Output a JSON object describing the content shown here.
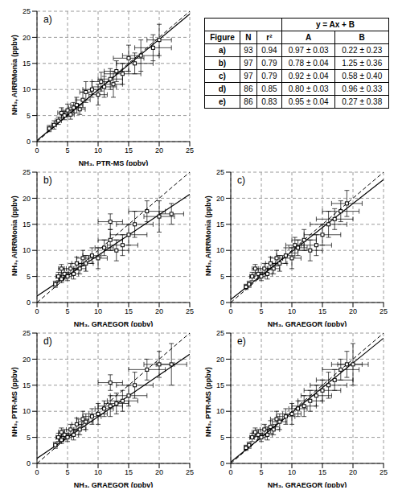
{
  "chart_data": [
    {
      "type": "scatter",
      "title": "a)",
      "x_label": "NH₃, PTR-MS (ppbv)",
      "y_label": "NH₃, AIRRMonia (ppbv)",
      "xlim": [
        0,
        25
      ],
      "ylim": [
        0,
        25
      ],
      "xticks": [
        0,
        5,
        10,
        15,
        20,
        25
      ],
      "yticks": [
        0,
        5,
        10,
        15,
        20,
        25
      ],
      "grid": true,
      "marker": "square",
      "color": "#000000",
      "fit": {
        "A": 0.97,
        "B": 0.22
      },
      "x": [
        2,
        2.8,
        3.5,
        4,
        4.5,
        5,
        5.5,
        6,
        6.5,
        7,
        7.5,
        8,
        9,
        10,
        10.5,
        11,
        12,
        12.5,
        13,
        14,
        15,
        16,
        17,
        19,
        20
      ],
      "values": [
        2.5,
        3.2,
        4,
        5.5,
        5,
        6,
        5.2,
        6.5,
        7,
        6.2,
        8,
        9.5,
        10,
        9,
        11.5,
        10.5,
        12,
        11,
        13.5,
        13,
        16,
        15,
        16.5,
        18,
        19.5
      ],
      "x_err": [
        0.3,
        0.4,
        0.5,
        0.6,
        0.5,
        0.8,
        0.6,
        0.8,
        1,
        0.9,
        1.2,
        1,
        1.5,
        1.5,
        1.5,
        2,
        2,
        1.5,
        2,
        3,
        2.5,
        3,
        3,
        3,
        2
      ],
      "y_err": [
        0.6,
        0.8,
        0.7,
        1,
        0.8,
        1.2,
        0.9,
        1,
        1.5,
        1,
        1.5,
        2,
        1.5,
        2,
        1.8,
        2,
        2,
        2.5,
        2,
        2,
        2.5,
        2,
        3,
        2.5,
        3
      ]
    },
    {
      "type": "scatter",
      "title": "b)",
      "x_label": "NH₃, GRAEGOR (ppbv)",
      "y_label": "NH₃, AIRRMonia (ppbv)",
      "xlim": [
        0,
        25
      ],
      "ylim": [
        0,
        25
      ],
      "xticks": [
        0,
        5,
        10,
        15,
        20,
        25
      ],
      "yticks": [
        0,
        5,
        10,
        15,
        20,
        25
      ],
      "grid": true,
      "marker": "square",
      "color": "#000000",
      "fit": {
        "A": 0.78,
        "B": 1.25
      },
      "x": [
        3,
        3.5,
        4,
        4,
        4.5,
        5,
        5.5,
        6,
        6.5,
        7,
        7.5,
        8,
        9,
        10,
        11,
        12,
        12,
        13,
        14,
        15,
        16,
        18,
        20,
        22
      ],
      "values": [
        3.5,
        5,
        4.5,
        6.5,
        5.5,
        5,
        6.5,
        5.5,
        7.5,
        6.5,
        8.5,
        7.5,
        9,
        8.5,
        10.5,
        12,
        15.5,
        10,
        11,
        13,
        15,
        17.5,
        16.5,
        17
      ],
      "x_err": [
        0.3,
        0.4,
        0.4,
        0.5,
        0.5,
        0.6,
        0.7,
        0.8,
        0.8,
        1,
        1,
        1.2,
        1.5,
        1.5,
        1.5,
        2,
        2,
        2,
        2.5,
        3,
        3,
        3,
        2.5,
        2
      ],
      "y_err": [
        0.6,
        0.8,
        0.7,
        0.8,
        1,
        0.8,
        1,
        1,
        1.2,
        1,
        1.5,
        1.5,
        1.5,
        2,
        1.5,
        2,
        1.5,
        2,
        2,
        2,
        2.5,
        2,
        3,
        2
      ]
    },
    {
      "type": "scatter",
      "title": "c)",
      "x_label": "NH₃, GRAEGOR (ppbv)",
      "y_label": "NH₃, AIRRMonia (ppbv)",
      "xlim": [
        0,
        25
      ],
      "ylim": [
        0,
        25
      ],
      "xticks": [
        0,
        5,
        10,
        15,
        20,
        25
      ],
      "yticks": [
        0,
        5,
        10,
        15,
        20,
        25
      ],
      "grid": true,
      "marker": "square",
      "color": "#000000",
      "fit": {
        "A": 0.92,
        "B": 0.58
      },
      "x": [
        2.5,
        3,
        3.5,
        4,
        4.5,
        5,
        5.5,
        6,
        6.5,
        7,
        7.5,
        8,
        9,
        10,
        10.5,
        11,
        12,
        13,
        14,
        15,
        16,
        17,
        18,
        19
      ],
      "values": [
        3,
        3.5,
        5,
        6.5,
        5.5,
        5,
        6.5,
        5.5,
        7.5,
        6.5,
        8.5,
        7.5,
        9,
        8.5,
        11,
        10.5,
        12,
        10,
        11,
        13,
        15,
        16,
        17.5,
        19
      ],
      "x_err": [
        0.3,
        0.3,
        0.4,
        0.5,
        0.5,
        0.6,
        0.7,
        0.8,
        0.8,
        1,
        1,
        1.2,
        1.5,
        1.5,
        1.5,
        1.5,
        2,
        2,
        2.5,
        3,
        3,
        3,
        3,
        2.5
      ],
      "y_err": [
        0.5,
        0.6,
        0.8,
        0.8,
        1,
        0.8,
        1,
        1,
        1.2,
        1,
        1.5,
        1.5,
        1.5,
        2,
        1.5,
        1.5,
        2,
        2,
        2,
        2,
        2.5,
        2,
        2,
        2.5
      ]
    },
    {
      "type": "scatter",
      "title": "d)",
      "x_label": "NH₃, GRAEGOR (ppbv)",
      "y_label": "NH₃, PTR-MS (ppbv)",
      "xlim": [
        0,
        25
      ],
      "ylim": [
        0,
        25
      ],
      "xticks": [
        0,
        5,
        10,
        15,
        20,
        25
      ],
      "yticks": [
        0,
        5,
        10,
        15,
        20,
        25
      ],
      "grid": true,
      "marker": "square",
      "color": "#000000",
      "fit": {
        "A": 0.8,
        "B": 0.96
      },
      "x": [
        3,
        3.5,
        4,
        4,
        4.5,
        5,
        5.5,
        6,
        6.5,
        7,
        7.5,
        8,
        9,
        10,
        11,
        12,
        12,
        13,
        14,
        15,
        16,
        18,
        20,
        22
      ],
      "values": [
        3.5,
        5,
        4.5,
        6,
        5.5,
        5,
        6.5,
        5.5,
        7.5,
        6.5,
        8.5,
        8,
        9,
        9.5,
        10.5,
        11,
        15.5,
        11.5,
        12,
        13,
        15,
        18,
        19,
        19
      ],
      "x_err": [
        0.3,
        0.4,
        0.4,
        0.5,
        0.5,
        0.6,
        0.7,
        0.8,
        0.8,
        1,
        1,
        1.2,
        1.5,
        1.5,
        1.5,
        2,
        2,
        2,
        2.5,
        3,
        3,
        3,
        2.5,
        2.5
      ],
      "y_err": [
        0.6,
        0.8,
        0.7,
        0.8,
        1,
        0.8,
        1,
        1,
        1.2,
        1,
        1.5,
        1.5,
        1.5,
        2,
        1.5,
        2,
        1.5,
        2,
        2,
        2,
        2.5,
        2,
        2.5,
        4
      ]
    },
    {
      "type": "scatter",
      "title": "e)",
      "x_label": "NH₃, GRAEGOR (ppbv)",
      "y_label": "NH₃, PTR-MS (ppbv)",
      "xlim": [
        0,
        25
      ],
      "ylim": [
        0,
        25
      ],
      "xticks": [
        0,
        5,
        10,
        15,
        20,
        25
      ],
      "yticks": [
        0,
        5,
        10,
        15,
        20,
        25
      ],
      "grid": true,
      "marker": "square",
      "color": "#000000",
      "fit": {
        "A": 0.95,
        "B": 0.27
      },
      "x": [
        2.5,
        3,
        3.5,
        4,
        4.5,
        5,
        5.5,
        6,
        6.5,
        7,
        7.5,
        8,
        9,
        10,
        11,
        12,
        13,
        14,
        15,
        16,
        17,
        18,
        19,
        20
      ],
      "values": [
        3,
        3.5,
        5,
        6,
        5.5,
        5,
        6.5,
        5.5,
        7,
        6.5,
        8.5,
        8,
        9,
        9.5,
        10.5,
        11,
        12,
        13,
        14,
        15,
        16,
        18,
        19,
        19
      ],
      "x_err": [
        0.3,
        0.3,
        0.4,
        0.5,
        0.5,
        0.6,
        0.7,
        0.8,
        0.8,
        1,
        1,
        1.2,
        1.5,
        1.5,
        1.5,
        2,
        2,
        2.5,
        3,
        3,
        3,
        3,
        2.5,
        2.5
      ],
      "y_err": [
        0.5,
        0.6,
        0.8,
        0.8,
        1,
        0.8,
        1,
        1,
        1.2,
        1,
        1.5,
        1.5,
        1.5,
        2,
        1.5,
        2,
        2,
        2,
        2,
        2.5,
        2,
        2,
        2.5,
        4
      ]
    }
  ],
  "table": {
    "group_header": "y = Ax + B",
    "header": [
      "Figure",
      "N",
      "r²",
      "A",
      "B"
    ],
    "rows": [
      [
        "a)",
        "93",
        "0.94",
        "0.97 ± 0.03",
        "0.22 ± 0.23"
      ],
      [
        "b)",
        "97",
        "0.79",
        "0.78 ± 0.04",
        "1.25 ± 0.36"
      ],
      [
        "c)",
        "97",
        "0.79",
        "0.92 ± 0.04",
        "0.58 ± 0.40"
      ],
      [
        "d)",
        "86",
        "0.85",
        "0.80 ± 0.03",
        "0.96 ± 0.33"
      ],
      [
        "e)",
        "86",
        "0.83",
        "0.95 ± 0.04",
        "0.27 ± 0.38"
      ]
    ]
  }
}
